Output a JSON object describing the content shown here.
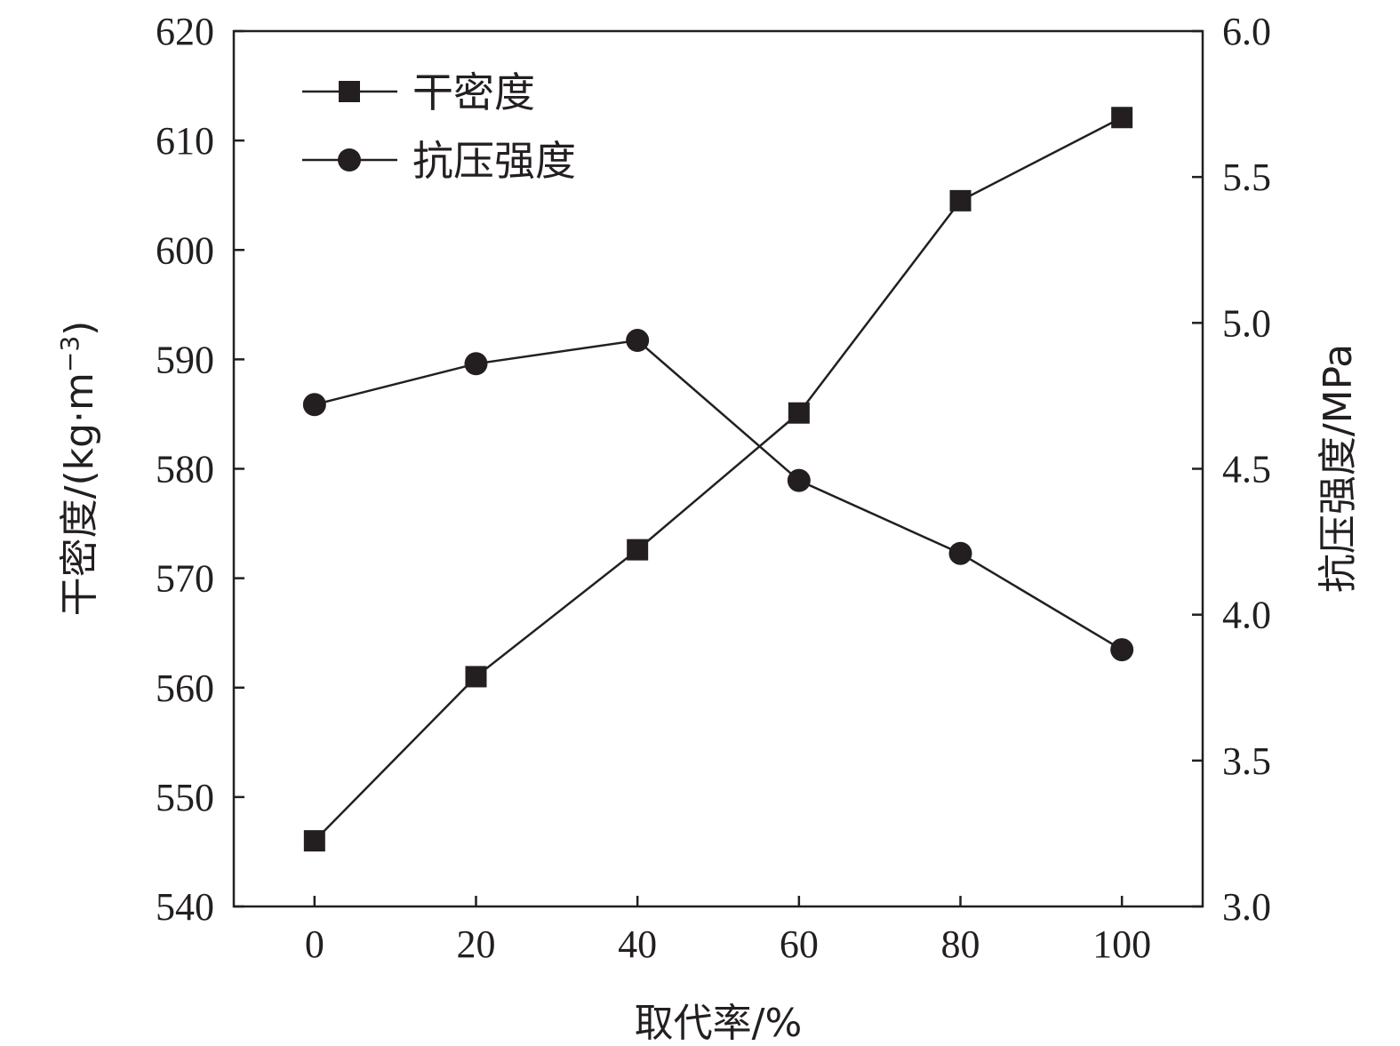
{
  "chart_data": {
    "type": "line",
    "x_values": [
      0,
      20,
      40,
      60,
      80,
      100
    ],
    "xlabel": "取代率/%",
    "xlim": [
      -10,
      110
    ],
    "xticks": [
      "0",
      "20",
      "40",
      "60",
      "80",
      "100"
    ],
    "ylabel_left": "干密度/(kg·m",
    "ylabel_left_sup": "−3",
    "ylabel_left_end": ")",
    "ylim_left": [
      540,
      620
    ],
    "yticks_left": [
      "540",
      "550",
      "560",
      "570",
      "580",
      "590",
      "600",
      "610",
      "620"
    ],
    "ylabel_right": "抗压强度/MPa",
    "ylim_right": [
      3.0,
      6.0
    ],
    "yticks_right": [
      "3.0",
      "3.5",
      "4.0",
      "4.5",
      "5.0",
      "5.5",
      "6.0"
    ],
    "series": [
      {
        "name": "干密度",
        "axis": "left",
        "marker": "square",
        "values": [
          546.0,
          561.0,
          572.6,
          585.1,
          604.5,
          612.1
        ]
      },
      {
        "name": "抗压强度",
        "axis": "right",
        "marker": "circle",
        "values": [
          4.72,
          4.86,
          4.94,
          4.46,
          4.21,
          3.88
        ]
      }
    ],
    "legend_position": "top-left",
    "grid": false,
    "colors": {
      "line": "#231f20",
      "background": "#ffffff"
    }
  }
}
